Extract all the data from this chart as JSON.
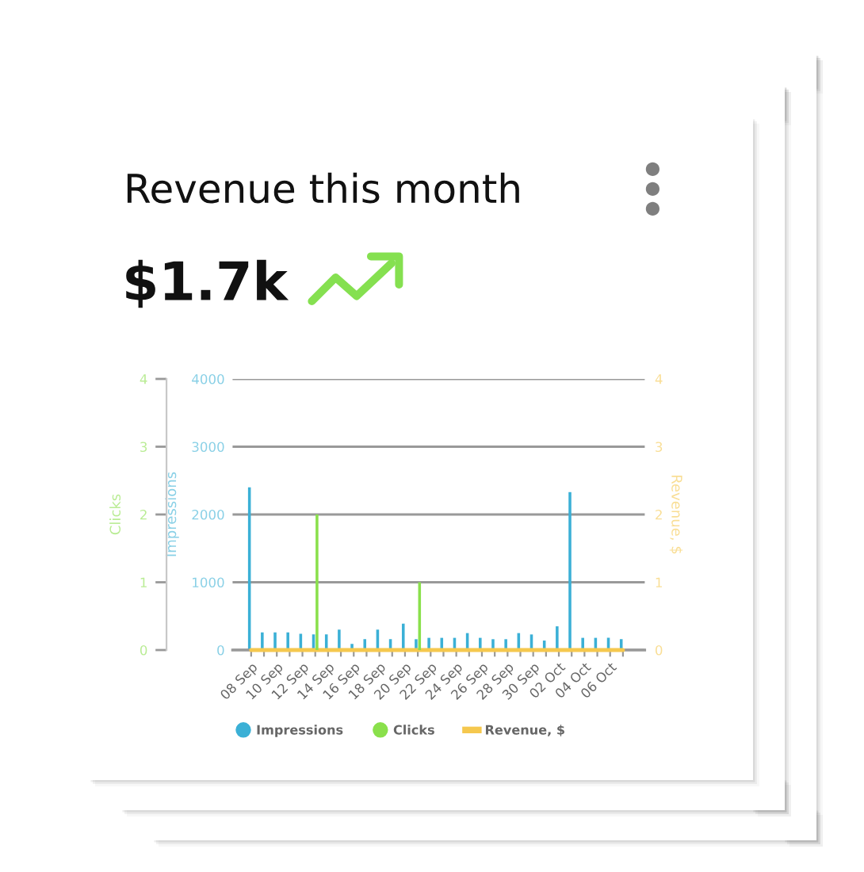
{
  "chart_data": {
    "type": "bar",
    "title": "Revenue this month",
    "subtitle": "$1.7k",
    "ylabel": "Impressions",
    "y2label": "Revenue, $",
    "y3label": "Clicks",
    "categories": [
      "08 Sep",
      null,
      "10 Sep",
      null,
      "12 Sep",
      null,
      "14 Sep",
      null,
      "16 Sep",
      null,
      "18 Sep",
      null,
      "20 Sep",
      null,
      "22 Sep",
      null,
      "24 Sep",
      null,
      "26 Sep",
      null,
      "28 Sep",
      null,
      "30 Sep",
      null,
      "02 Oct",
      null,
      "04 Oct",
      null,
      "06 Oct",
      null
    ],
    "series": [
      {
        "name": "Impressions",
        "axis": "y",
        "color": "#3bb0d6",
        "values": [
          2400,
          260,
          260,
          260,
          240,
          230,
          230,
          300,
          90,
          160,
          300,
          160,
          390,
          160,
          180,
          180,
          180,
          250,
          180,
          160,
          160,
          250,
          230,
          140,
          350,
          2330,
          180,
          180,
          180,
          160
        ]
      },
      {
        "name": "Clicks",
        "axis": "y3",
        "color": "#8ae04c",
        "values": [
          0,
          0,
          0,
          0,
          0,
          2,
          0,
          0,
          0,
          0,
          0,
          0,
          0,
          1,
          0,
          0,
          0,
          0,
          0,
          0,
          0,
          0,
          0,
          0,
          0,
          0,
          0,
          0,
          0,
          0
        ]
      },
      {
        "name": "Revenue, $",
        "type": "line",
        "axis": "y2",
        "color": "#f5c84e",
        "values": [
          0,
          0,
          0,
          0,
          0,
          0,
          0,
          0,
          0,
          0,
          0,
          0,
          0,
          0,
          0,
          0,
          0,
          0,
          0,
          0,
          0,
          0,
          0,
          0,
          0,
          0,
          0,
          0,
          0,
          0
        ]
      }
    ],
    "ylim": [
      0,
      4000
    ],
    "yticks": [
      0,
      1000,
      2000,
      3000,
      4000
    ],
    "y2lim": [
      0,
      4
    ],
    "y2ticks": [
      0,
      1,
      2,
      3,
      4
    ],
    "y3lim": [
      0,
      4
    ],
    "y3ticks": [
      0,
      1,
      2,
      3,
      4
    ],
    "grid": "y",
    "legend": "bottom"
  }
}
